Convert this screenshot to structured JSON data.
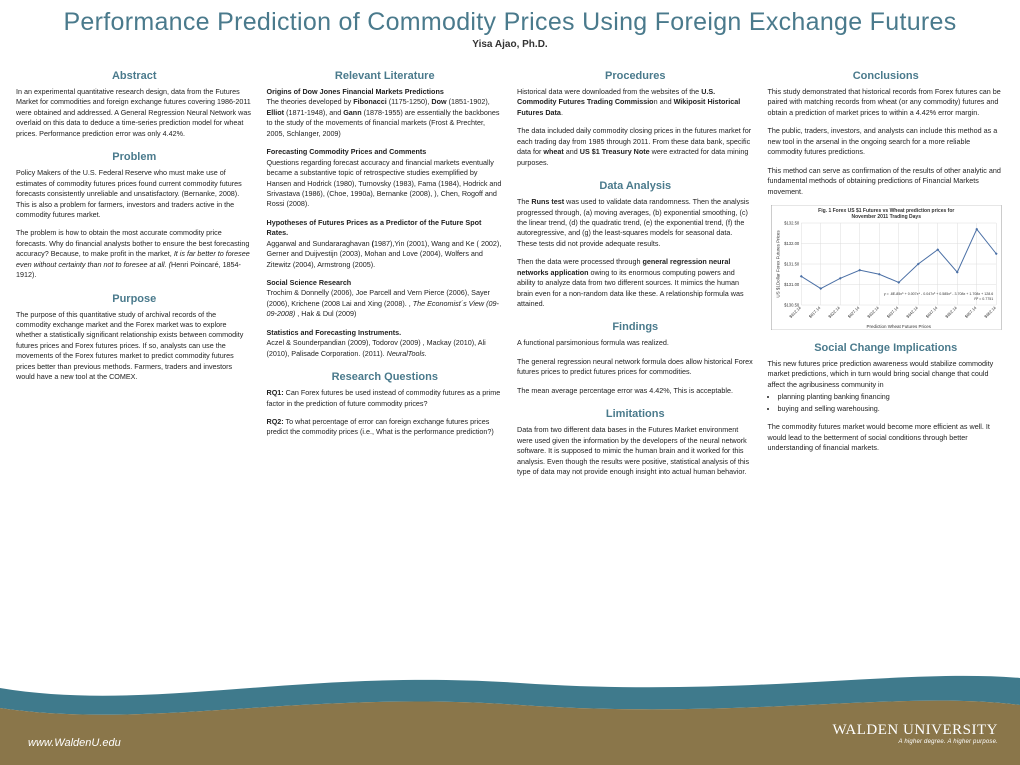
{
  "title": "Performance Prediction of Commodity Prices Using Foreign Exchange Futures",
  "author": "Yisa Ajao, Ph.D.",
  "col1": {
    "abstract": {
      "heading": "Abstract",
      "text": "In an experimental quantitative research design, data from the Futures Market for commodities and foreign exchange futures covering 1986-2011 were obtained and addressed. A General Regression Neural Network was overlaid on this data to deduce a time-series prediction model for wheat prices. Performance prediction error was only 4.42%."
    },
    "problem": {
      "heading": "Problem",
      "p1": "Policy Makers of the U.S. Federal Reserve who must make use of estimates of commodity futures prices found current commodity futures forecasts consistently unreliable and unsatisfactory. (Bernanke, 2008). This is also a problem for farmers, investors and traders active in the commodity futures market.",
      "p2_pre": "The problem is how to obtain the most accurate commodity price forecasts. Why do financial analysts bother to ensure the best forecasting accuracy? Because, to make profit in the market, ",
      "p2_em": "It is far better to foresee even without certainty than not to foresee at all. (",
      "p2_post": "Henri Poincaré, 1854-1912)."
    },
    "purpose": {
      "heading": "Purpose",
      "text": "The purpose of this quantitative study of archival records of the commodity exchange market and the Forex market was to explore whether a statistically significant relationship exists between commodity futures prices and Forex futures prices. If so, analysts can use the movements of the Forex futures market to predict commodity futures prices better than previous methods. Farmers, traders and investors would have a new tool at the COMEX."
    }
  },
  "col2": {
    "litrev": {
      "heading": "Relevant Literature",
      "p1_b": "Origins of Dow Jones Financial Markets Predictions",
      "p1": "The theories developed by <b>Fibonacci</b> (1175-1250), <b>Dow</b> (1851-1902), <b>Elliot</b> (1871-1948), and <b>Gann</b> (1878-1955) are essentially the backbones to the study of the movements of financial markets (Frost & Prechter, 2005, Schlanger, 2009)",
      "p2_b": "Forecasting Commodity Prices and Comments",
      "p2": "Questions regarding forecast accuracy and financial markets eventually became a substantive topic of retrospective studies exemplified by Hansen and Hodrick (1980), Turnovsky (1983), Fama (1984), Hodrick and Srivastava (1986), (Choe, 1990a), Bernanke (2008), ), Chen, Rogoff and Rossi (2008).",
      "p3_b": "Hypotheses of Futures Prices as a Predictor of the Future Spot Rates.",
      "p3": "Aggarwal and  Sundararaghavan <b>(</b>1987),Yin (2001), Wang and  Ke ( 2002), Gerner and Duijvestijn (2003), Mohan and Love (2004), Wolfers and Zitewitz (2004), Armstrong (2005).",
      "p4_b": "Social Science Research",
      "p4": "Trochim & Donnelly (2006), Joe Parcell and Vern Pierce (2006), Sayer (2006), Krichene (2008 Lai and Xing (2008). , <i>The Economist´s View (09-09-2008)</i> , Hak & Dul (2009)",
      "p5_b": "Statistics and Forecasting Instruments.",
      "p5": " Aczel & Sounderpandian (2009), Todorov (2009) , Mackay (2010), Ali (2010), Palisade Corporation. (2011). <i>NeuralTools.</i>"
    },
    "rq": {
      "heading": "Research Questions",
      "p1": "<b>RQ1:</b> Can Forex futures be used instead of commodity futures as a prime factor in the prediction of future commodity prices?",
      "p2": "<b>RQ2:</b> To what percentage of error can foreign exchange futures prices predict the commodity prices (i.e., What is the performance prediction?)"
    }
  },
  "col3": {
    "proc": {
      "heading": "Procedures",
      "p1": "Historical data were downloaded from the websites of the <b>U.S. Commodity Futures Trading Commissio</b>n and <b>Wikiposit Historical Futures Data</b>.",
      "p2": "The data included daily commodity closing prices in the futures market for each trading day from 1985 through 2011. From these data bank, specific data for <b>wheat</b> and <b>US $1 Treasury Note</b> were extracted for data mining purposes."
    },
    "da": {
      "heading": "Data Analysis",
      "p1": "The <b>Runs test</b> was used to validate data randomness.  Then the analysis  progressed through, (a) moving averages, (b) exponential smoothing, (c) the linear trend, (d) the quadratic trend, (e) the exponential trend, (f) the autoregressive, and (g) the least-squares models for seasonal data.  These tests did not provide adequate results.",
      "p2": "Then the data were processed  through <b>general regression neural networks application</b> owing to its enormous computing powers and ability to analyze data from two different sources. It mimics the  human brain even for a non-random data like these. A relationship formula was attained."
    },
    "find": {
      "heading": "Findings",
      "p1": "A functional parsimonious formula was realized.",
      "p2": "The general regression neural network formula does allow historical Forex futures prices to predict futures prices for commodities.",
      "p3": "The mean average percentage error was 4.42%, This is acceptable."
    },
    "lim": {
      "heading": "Limitations",
      "p1": "Data from two different data bases in the Futures Market environment were used given the information by the developers of the neural network software. It is supposed to mimic the human brain and it worked for this analysis. Even though the results were positive, statistical analysis of this type of data may not provide enough insight into actual human behavior."
    }
  },
  "col4": {
    "conc": {
      "heading": "Conclusions",
      "p1": "This study demonstrated that historical records from Forex futures can be paired with matching records from wheat (or any commodity) futures and obtain a prediction of market prices to within a 4.42% error margin.",
      "p2": "The public, traders, investors, and analysts can include this method as a new tool in the arsenal in the ongoing search for a more reliable commodity futures predictions.",
      "p3": "This method can serve as confirmation of the results of other analytic and fundamental methods of obtaining predictions of Financial Markets movement."
    },
    "chart": {
      "title": "Fig. 1 Forex US $1 Futures  vs Wheat prediction prices for November 2011 Trading Days",
      "ylabel": "US $1Dollar  Forex Futures Prices",
      "xlabel": "Prediction  Wheat Futures Prices",
      "xticks": [
        "$612.14",
        "$617.14",
        "$622.14",
        "$627.14",
        "$632.14",
        "$637.14",
        "$642.14",
        "$647.14",
        "$652.14",
        "$657.14",
        "$662.14"
      ],
      "yticks": [
        "$130.50",
        "$131.00",
        "$131.50",
        "$132.00",
        "$132.50"
      ],
      "ylim": [
        130.5,
        132.5
      ],
      "xlim": [
        612.14,
        662.14
      ],
      "points": [
        [
          612.14,
          131.2
        ],
        [
          617.14,
          130.9
        ],
        [
          622.14,
          131.15
        ],
        [
          627.14,
          131.35
        ],
        [
          632.14,
          131.25
        ],
        [
          637.14,
          131.05
        ],
        [
          642.14,
          131.5
        ],
        [
          647.14,
          131.85
        ],
        [
          652.14,
          131.3
        ],
        [
          657.14,
          132.35
        ],
        [
          662.14,
          131.75
        ]
      ],
      "formula": "y = .8E-85x⁵ + 0.007x⁴ - 0.047x³ + 0.585x² - 3.708x + 1.708x + 128.6\\nR² = 0.7751",
      "line_color": "#4a6fa5",
      "grid_color": "#d6d6d6",
      "bg": "#ffffff",
      "font_size": 5
    },
    "soc": {
      "heading": "Social Change Implications",
      "p1": "This new futures price prediction awareness would stabilize commodity market predictions, which in turn would bring social change that could affect the agribusiness community in",
      "li1": "planning planting banking financing",
      "li2": "buying and selling warehousing.",
      "p2": "The commodity futures market would become more efficient as well. It would lead to the betterment of social conditions through better understanding of financial markets."
    }
  },
  "footer": {
    "url": "www.WaldenU.edu",
    "uni": "WALDEN UNIVERSITY",
    "tagline": "A higher degree. A higher purpose.",
    "wave_top_color": "#ffffff",
    "wave_mid_color": "#3f7a8c",
    "wave_bottom_color": "#8a764a"
  }
}
